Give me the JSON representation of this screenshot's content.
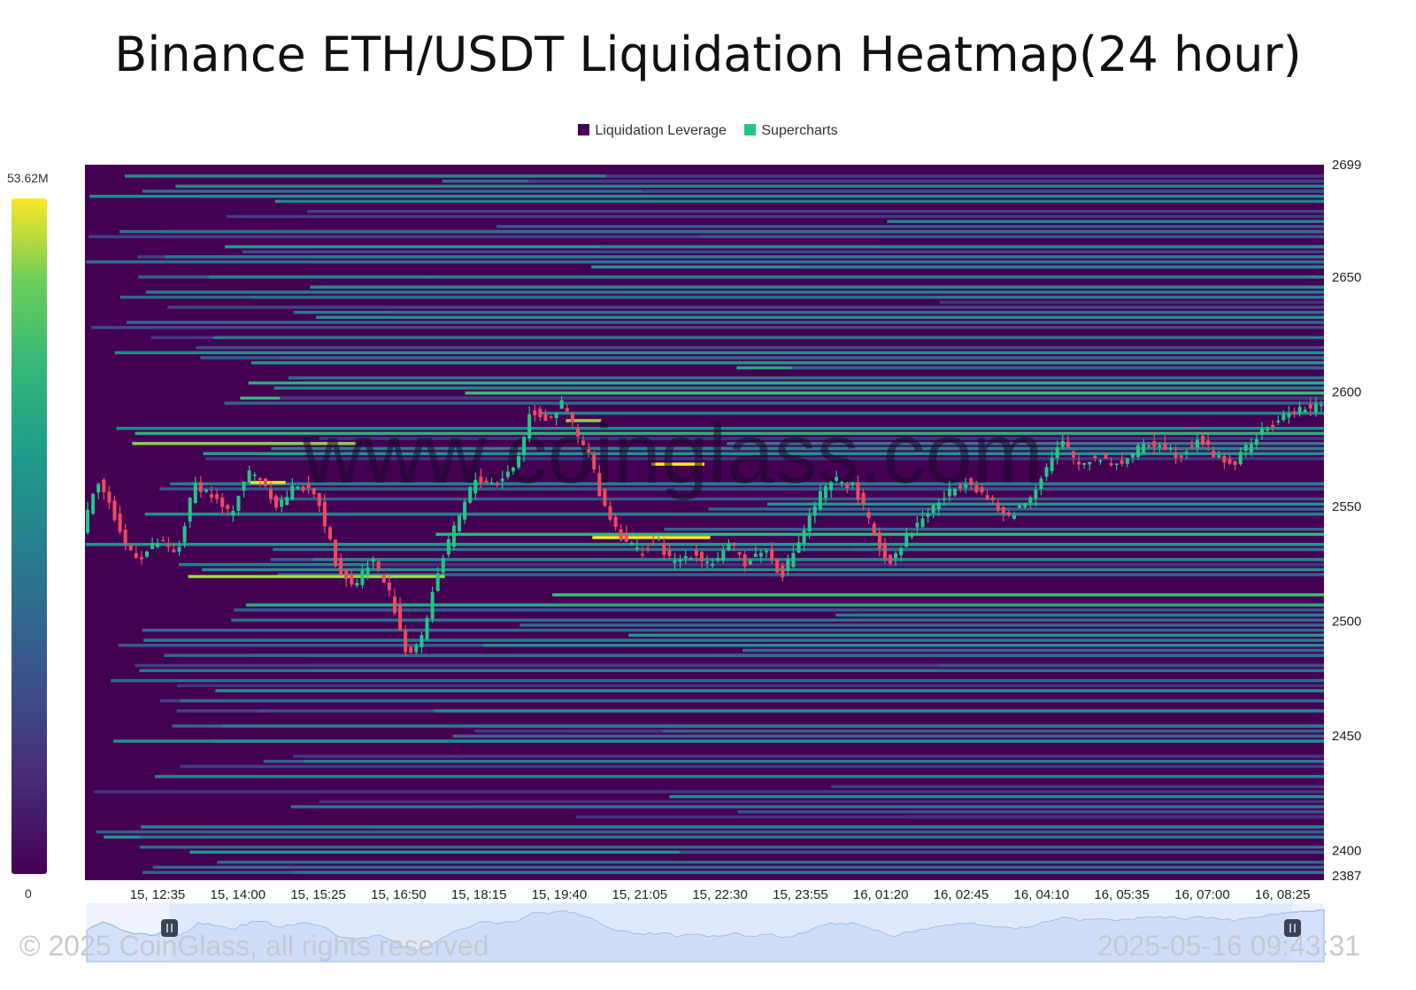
{
  "chart": {
    "title": "Binance ETH/USDT Liquidation Heatmap(24 hour)",
    "legend": [
      {
        "label": "Liquidation Leverage",
        "color": "#440154"
      },
      {
        "label": "Supercharts",
        "color": "#22c784"
      }
    ],
    "colorbar": {
      "max_label": "53.62M",
      "min_label": "0",
      "palette": "viridis"
    },
    "watermark": "www.coinglass.com",
    "copyright": "© 2025 CoinGlass, all rights reserved",
    "timestamp": "2025-05-16 09:43:31"
  },
  "colors": {
    "background": "#440154",
    "up_candle": "#22c784",
    "down_candle": "#f04a5e",
    "high": "#fde725"
  },
  "chart_data": {
    "type": "heatmap",
    "title": "Binance ETH/USDT Liquidation Heatmap(24 hour)",
    "x_tick_labels": [
      "15, 12:35",
      "15, 14:00",
      "15, 15:25",
      "15, 16:50",
      "15, 18:15",
      "15, 19:40",
      "15, 21:05",
      "15, 22:30",
      "15, 23:55",
      "16, 01:20",
      "16, 02:45",
      "16, 04:10",
      "16, 05:35",
      "16, 07:00",
      "16, 08:25"
    ],
    "y_tick_labels": [
      "2699",
      "2650",
      "2600",
      "2550",
      "2500",
      "2450",
      "2400",
      "2387"
    ],
    "ylim": [
      2387,
      2699
    ],
    "colorbar_range": [
      0,
      53.62
    ],
    "colorbar_unit": "M",
    "price_path_hours_vs_price": [
      [
        0,
        2540
      ],
      [
        0.5,
        2563
      ],
      [
        1,
        2548
      ],
      [
        1.5,
        2532
      ],
      [
        2,
        2528
      ],
      [
        2.6,
        2535
      ],
      [
        3.2,
        2528
      ],
      [
        3.8,
        2560
      ],
      [
        4.3,
        2556
      ],
      [
        5,
        2546
      ],
      [
        5.6,
        2565
      ],
      [
        6.1,
        2562
      ],
      [
        6.6,
        2550
      ],
      [
        7.3,
        2560
      ],
      [
        8,
        2553
      ],
      [
        8.6,
        2525
      ],
      [
        9.2,
        2515
      ],
      [
        9.8,
        2528
      ],
      [
        10.5,
        2510
      ],
      [
        11,
        2485
      ],
      [
        11.5,
        2492
      ],
      [
        12,
        2520
      ],
      [
        12.7,
        2543
      ],
      [
        13.3,
        2562
      ],
      [
        14,
        2560
      ],
      [
        14.7,
        2568
      ],
      [
        15.2,
        2592
      ],
      [
        15.8,
        2588
      ],
      [
        16.3,
        2595
      ],
      [
        16.8,
        2580
      ],
      [
        17.2,
        2572
      ],
      [
        17.6,
        2553
      ],
      [
        18.2,
        2538
      ],
      [
        18.9,
        2530
      ],
      [
        19.5,
        2535
      ],
      [
        20,
        2525
      ],
      [
        20.7,
        2530
      ],
      [
        21.3,
        2525
      ],
      [
        22,
        2533
      ],
      [
        22.5,
        2525
      ],
      [
        23.1,
        2532
      ],
      [
        23.7,
        2520
      ],
      [
        24.3,
        2535
      ],
      [
        25,
        2555
      ],
      [
        25.6,
        2562
      ],
      [
        26.2,
        2558
      ],
      [
        26.7,
        2542
      ],
      [
        27.3,
        2525
      ],
      [
        28,
        2538
      ],
      [
        28.7,
        2548
      ],
      [
        29.3,
        2555
      ],
      [
        30,
        2562
      ],
      [
        30.7,
        2553
      ],
      [
        31.3,
        2545
      ],
      [
        32,
        2552
      ],
      [
        32.6,
        2565
      ],
      [
        33.2,
        2578
      ],
      [
        33.8,
        2568
      ],
      [
        34.4,
        2572
      ],
      [
        35.1,
        2568
      ],
      [
        35.8,
        2575
      ],
      [
        36.5,
        2578
      ],
      [
        37.2,
        2572
      ],
      [
        37.8,
        2580
      ],
      [
        38.4,
        2572
      ],
      [
        39,
        2568
      ],
      [
        39.6,
        2578
      ],
      [
        40.3,
        2585
      ],
      [
        41,
        2592
      ],
      [
        41.6,
        2593
      ]
    ],
    "note": "Liquidation levels are horizontal bands; color intensity = liquidation leverage amount"
  }
}
